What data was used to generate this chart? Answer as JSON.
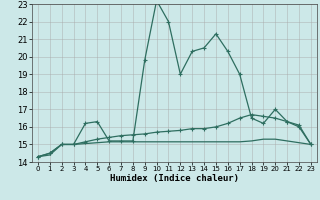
{
  "xlabel": "Humidex (Indice chaleur)",
  "bg_color": "#cce8e8",
  "grid_color": "#aaaaaa",
  "line_color": "#2e6e60",
  "xlim": [
    -0.5,
    23.5
  ],
  "ylim": [
    14,
    23
  ],
  "x_ticks": [
    0,
    1,
    2,
    3,
    4,
    5,
    6,
    7,
    8,
    9,
    10,
    11,
    12,
    13,
    14,
    15,
    16,
    17,
    18,
    19,
    20,
    21,
    22,
    23
  ],
  "y_ticks": [
    14,
    15,
    16,
    17,
    18,
    19,
    20,
    21,
    22,
    23
  ],
  "series1_x": [
    0,
    1,
    2,
    3,
    4,
    5,
    6,
    7,
    8,
    9,
    10,
    11,
    12,
    13,
    14,
    15,
    16,
    17,
    18,
    19,
    20,
    21,
    22,
    23
  ],
  "series1_y": [
    14.3,
    14.5,
    15.0,
    15.0,
    16.2,
    16.3,
    15.2,
    15.2,
    15.2,
    19.8,
    23.2,
    22.0,
    19.0,
    20.3,
    20.5,
    21.3,
    20.3,
    19.0,
    16.5,
    16.2,
    17.0,
    16.3,
    16.0,
    15.0
  ],
  "series2_x": [
    0,
    1,
    2,
    3,
    4,
    5,
    6,
    7,
    8,
    9,
    10,
    11,
    12,
    13,
    14,
    15,
    16,
    17,
    18,
    19,
    20,
    21,
    22,
    23
  ],
  "series2_y": [
    14.3,
    14.5,
    15.0,
    15.0,
    15.15,
    15.3,
    15.4,
    15.5,
    15.55,
    15.6,
    15.7,
    15.75,
    15.8,
    15.9,
    15.9,
    16.0,
    16.2,
    16.5,
    16.7,
    16.6,
    16.5,
    16.3,
    16.1,
    15.0
  ],
  "series3_x": [
    0,
    1,
    2,
    3,
    4,
    5,
    6,
    7,
    8,
    9,
    10,
    11,
    12,
    13,
    14,
    15,
    16,
    17,
    18,
    19,
    20,
    21,
    22,
    23
  ],
  "series3_y": [
    14.3,
    14.4,
    15.0,
    15.0,
    15.05,
    15.1,
    15.15,
    15.15,
    15.15,
    15.15,
    15.15,
    15.15,
    15.15,
    15.15,
    15.15,
    15.15,
    15.15,
    15.15,
    15.2,
    15.3,
    15.3,
    15.2,
    15.1,
    15.0
  ]
}
